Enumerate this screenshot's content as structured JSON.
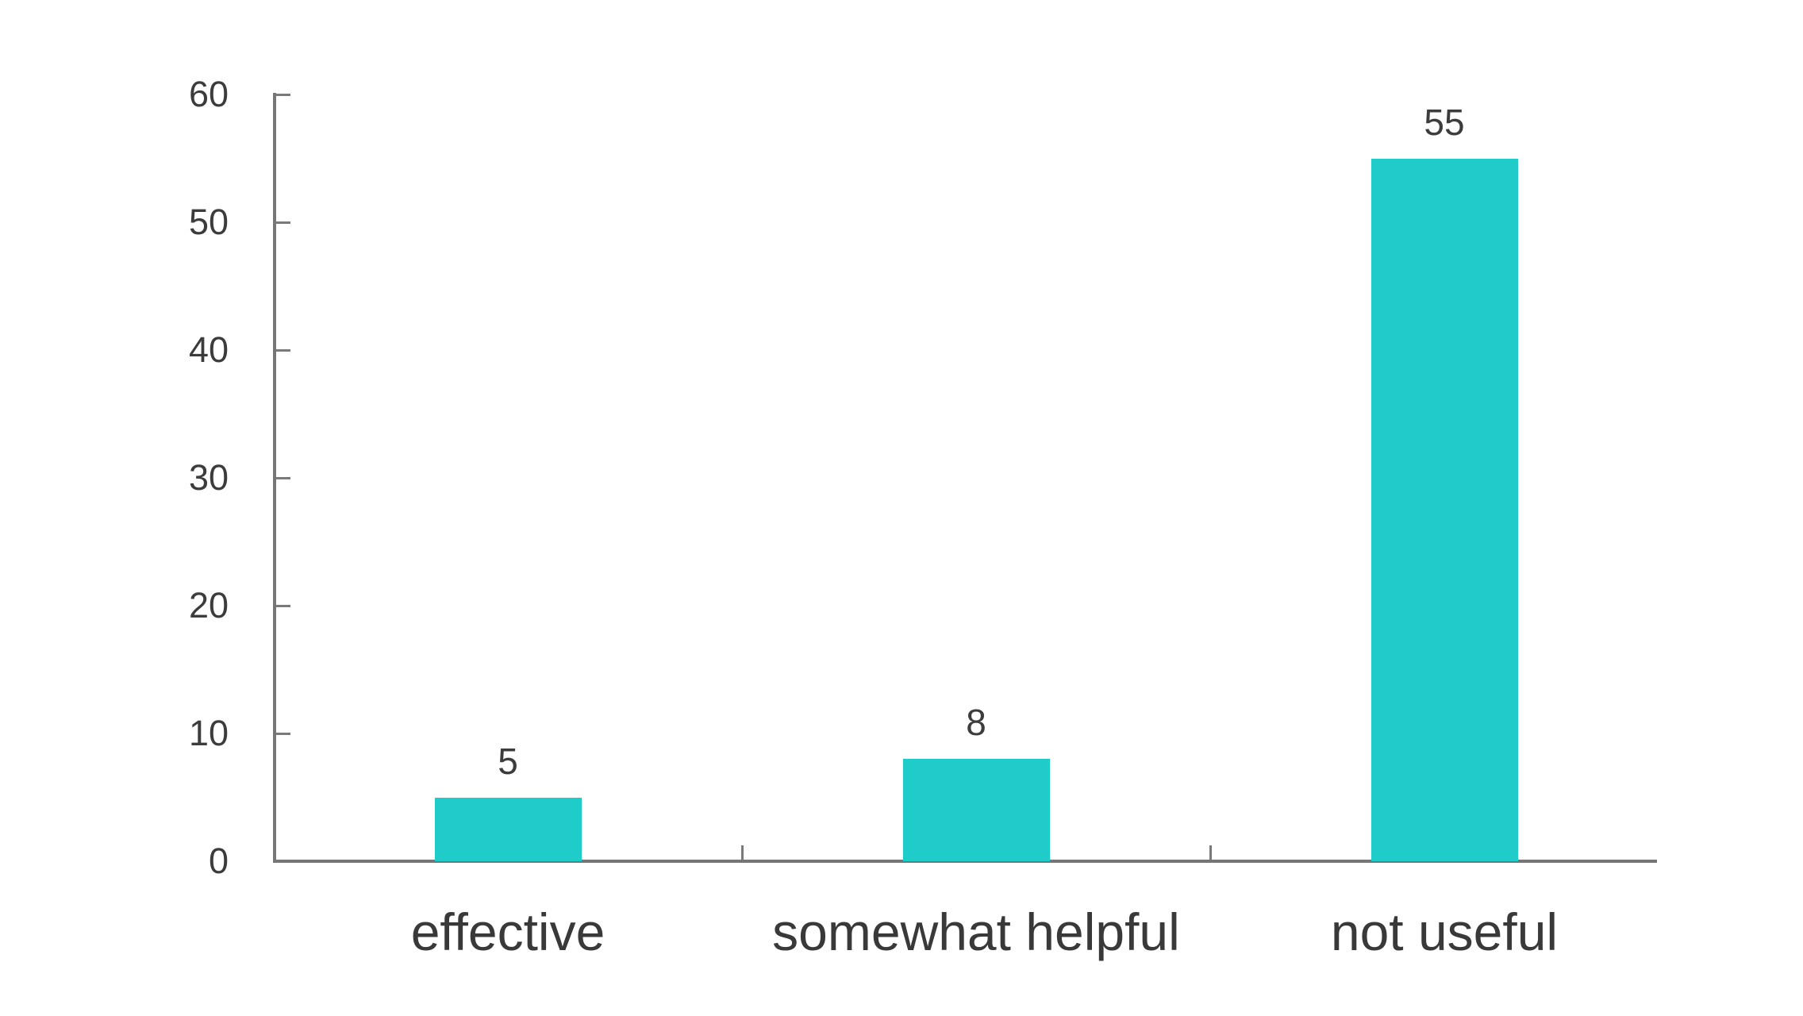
{
  "chart_data": {
    "type": "bar",
    "title": "",
    "xlabel": "",
    "ylabel": "",
    "categories": [
      "effective",
      "somewhat helpful",
      "not useful"
    ],
    "values": [
      5,
      8,
      55
    ],
    "value_labels": [
      "5",
      "8",
      "55"
    ],
    "ylim": [
      0,
      60
    ],
    "yticks": [
      0,
      10,
      20,
      30,
      40,
      50,
      60
    ],
    "grid": false,
    "legend": false,
    "colors": {
      "bar": "#1FCCC9",
      "axis": "#767676",
      "tick": "#7A7A7A",
      "tick_label": "#3C3C3C",
      "value_label": "#3C3C3C",
      "category_label": "#393939",
      "background": "#FFFFFF"
    }
  }
}
